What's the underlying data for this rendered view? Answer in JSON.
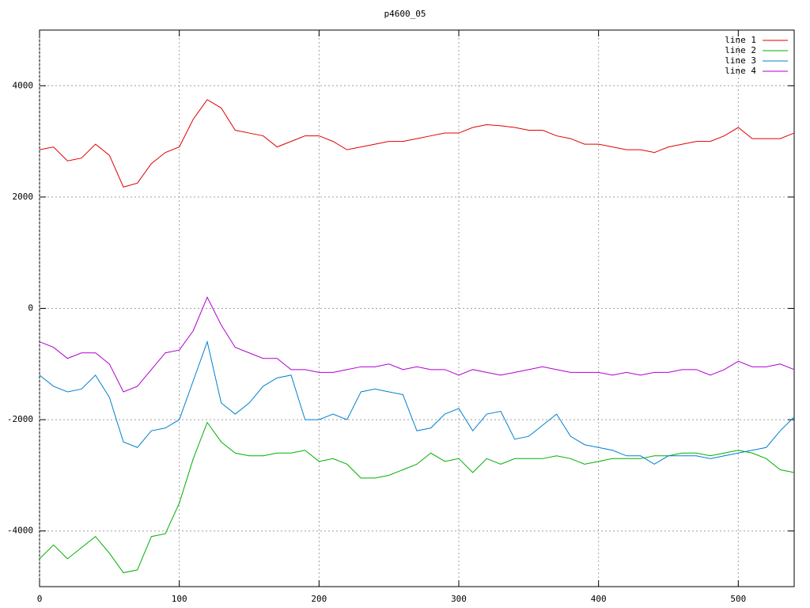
{
  "chart_data": {
    "type": "line",
    "title": "p4600_05",
    "x": [
      0,
      10,
      20,
      30,
      40,
      50,
      60,
      70,
      80,
      90,
      100,
      110,
      120,
      130,
      140,
      150,
      160,
      170,
      180,
      190,
      200,
      210,
      220,
      230,
      240,
      250,
      260,
      270,
      280,
      290,
      300,
      310,
      320,
      330,
      340,
      350,
      360,
      370,
      380,
      390,
      400,
      410,
      420,
      430,
      440,
      450,
      460,
      470,
      480,
      490,
      500,
      510,
      520,
      530,
      540
    ],
    "series": [
      {
        "name": "line 1",
        "color": "#e00000",
        "values": [
          2850,
          2900,
          2650,
          2700,
          2950,
          2750,
          2180,
          2250,
          2600,
          2800,
          2900,
          3400,
          3750,
          3600,
          3200,
          3150,
          3100,
          2900,
          3000,
          3100,
          3100,
          3000,
          2850,
          2900,
          2950,
          3000,
          3000,
          3050,
          3100,
          3150,
          3150,
          3250,
          3300,
          3280,
          3250,
          3200,
          3200,
          3100,
          3050,
          2950,
          2950,
          2900,
          2850,
          2850,
          2800,
          2900,
          2950,
          3000,
          3000,
          3100,
          3250,
          3050,
          3050,
          3050,
          3150
        ]
      },
      {
        "name": "line 2",
        "color": "#00b000",
        "values": [
          -4500,
          -4250,
          -4500,
          -4300,
          -4100,
          -4400,
          -4750,
          -4700,
          -4100,
          -4050,
          -3500,
          -2700,
          -2050,
          -2400,
          -2600,
          -2650,
          -2650,
          -2600,
          -2600,
          -2550,
          -2750,
          -2700,
          -2800,
          -3050,
          -3050,
          -3000,
          -2900,
          -2800,
          -2600,
          -2750,
          -2700,
          -2950,
          -2700,
          -2800,
          -2700,
          -2700,
          -2700,
          -2650,
          -2700,
          -2800,
          -2750,
          -2700,
          -2700,
          -2700,
          -2650,
          -2650,
          -2600,
          -2600,
          -2650,
          -2600,
          -2550,
          -2600,
          -2700,
          -2900,
          -2950
        ]
      },
      {
        "name": "line 3",
        "color": "#0080d0",
        "values": [
          -1200,
          -1400,
          -1500,
          -1450,
          -1200,
          -1600,
          -2400,
          -2500,
          -2200,
          -2150,
          -2000,
          -1300,
          -600,
          -1700,
          -1900,
          -1700,
          -1400,
          -1250,
          -1200,
          -2000,
          -2000,
          -1900,
          -2000,
          -1500,
          -1450,
          -1500,
          -1550,
          -2200,
          -2150,
          -1900,
          -1800,
          -2200,
          -1900,
          -1850,
          -2350,
          -2300,
          -2100,
          -1900,
          -2300,
          -2450,
          -2500,
          -2550,
          -2650,
          -2650,
          -2800,
          -2650,
          -2650,
          -2650,
          -2700,
          -2650,
          -2600,
          -2550,
          -2500,
          -2200,
          -1950
        ]
      },
      {
        "name": "line 4",
        "color": "#b000d0",
        "values": [
          -600,
          -700,
          -900,
          -800,
          -800,
          -1000,
          -1500,
          -1400,
          -1100,
          -800,
          -750,
          -400,
          200,
          -300,
          -700,
          -800,
          -900,
          -900,
          -1100,
          -1100,
          -1150,
          -1150,
          -1100,
          -1050,
          -1050,
          -1000,
          -1100,
          -1050,
          -1100,
          -1100,
          -1200,
          -1100,
          -1150,
          -1200,
          -1150,
          -1100,
          -1050,
          -1100,
          -1150,
          -1150,
          -1150,
          -1200,
          -1150,
          -1200,
          -1150,
          -1150,
          -1100,
          -1100,
          -1200,
          -1100,
          -950,
          -1050,
          -1050,
          -1000,
          -1100
        ]
      }
    ],
    "xlim": [
      0,
      540
    ],
    "ylim": [
      -5000,
      5000
    ],
    "xticks": [
      0,
      100,
      200,
      300,
      400,
      500
    ],
    "yticks": [
      -4000,
      -2000,
      0,
      2000,
      4000
    ],
    "grid": true,
    "legend": "top-right"
  }
}
